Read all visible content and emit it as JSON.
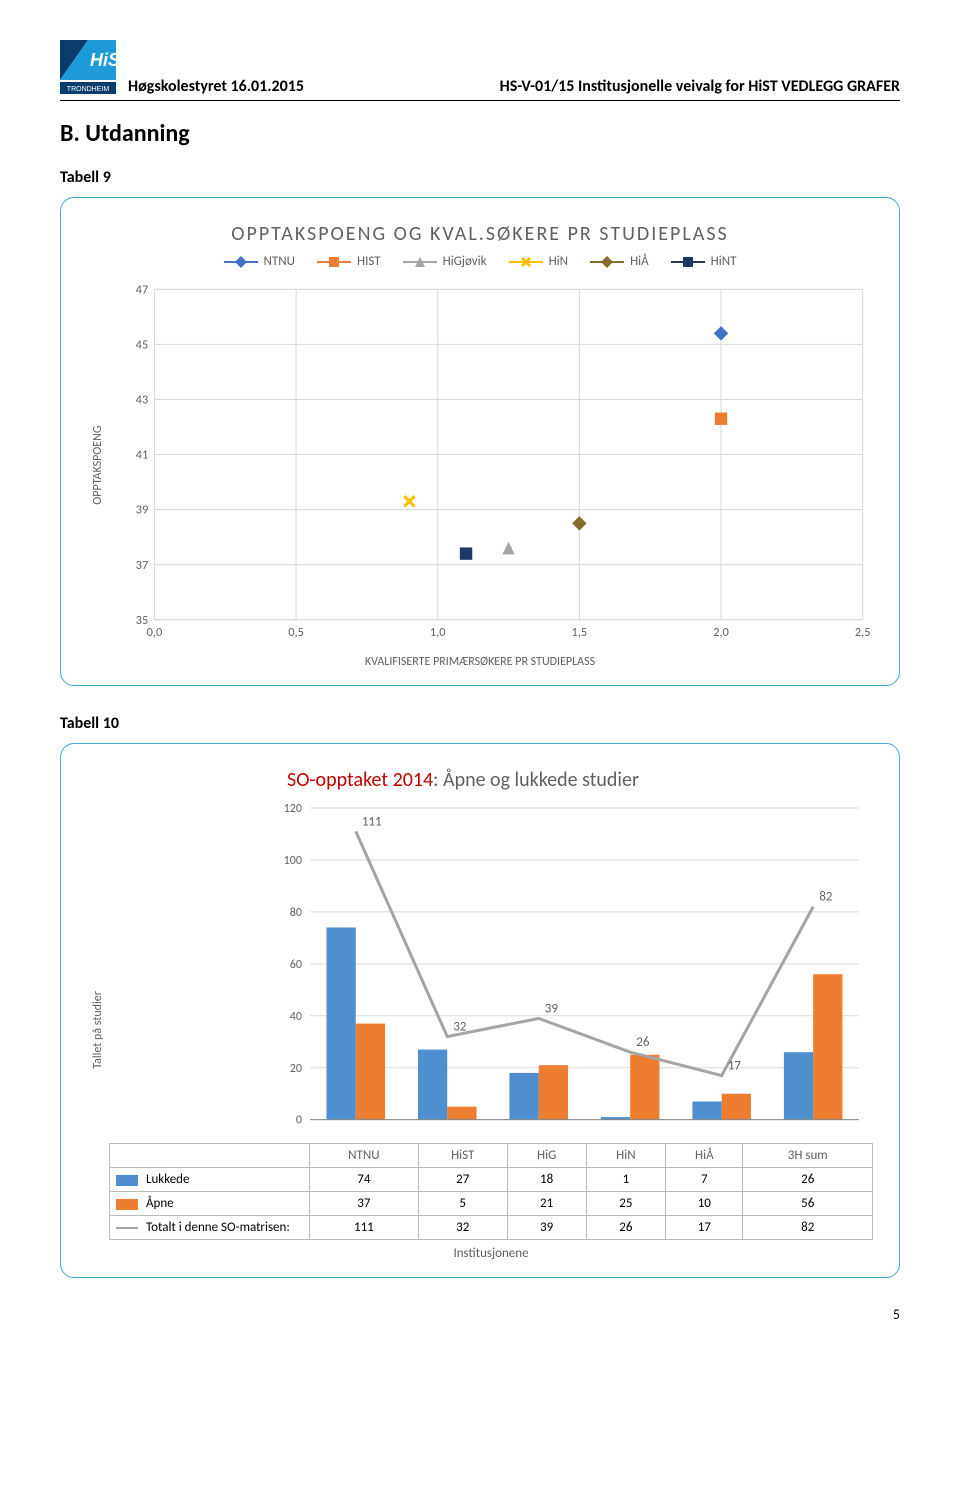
{
  "header": {
    "left": "Høgskolestyret 16.01.2015",
    "right": "HS-V-01/15 Institusjonelle veivalg for HiST VEDLEGG GRAFER"
  },
  "section_title": "B. Utdanning",
  "page_number": "5",
  "logo": {
    "name": "hist-logo",
    "text_top": "HiST",
    "text_bottom": "TRONDHEIM",
    "color1": "#0b3c6e",
    "color2": "#1d9bd8"
  },
  "tabell9": {
    "caption": "Tabell 9",
    "title": "OPPTAKSPOENG OG KVAL.SØKERE PR STUDIEPLASS",
    "x_label": "KVALIFISERTE PRIMÆRSØKERE PR STUDIEPLASS",
    "y_label": "OPPTAKSPOENG",
    "xlim": [
      0.0,
      2.5
    ],
    "ylim": [
      35,
      47
    ],
    "x_ticks": [
      "0,0",
      "0,5",
      "1,0",
      "1,5",
      "2,0",
      "2,5"
    ],
    "y_ticks": [
      35,
      37,
      39,
      41,
      43,
      45,
      47
    ],
    "grid_color": "#d9d9d9",
    "series": [
      {
        "label": "NTNU",
        "color": "#4472c4",
        "marker": "diamond",
        "x": 2.0,
        "y": 45.4
      },
      {
        "label": "HIST",
        "color": "#ed7d31",
        "marker": "square",
        "x": 2.0,
        "y": 42.3
      },
      {
        "label": "HiGjøvik",
        "color": "#a5a5a5",
        "marker": "triangle",
        "x": 1.25,
        "y": 37.6
      },
      {
        "label": "HiN",
        "color": "#ffc000",
        "marker": "x",
        "x": 0.9,
        "y": 39.3
      },
      {
        "label": "HiÅ",
        "color": "#846f2a",
        "marker": "diamond",
        "x": 1.5,
        "y": 38.5
      },
      {
        "label": "HiNT",
        "color": "#203864",
        "marker": "square",
        "x": 1.1,
        "y": 37.4
      }
    ]
  },
  "tabell10": {
    "caption": "Tabell 10",
    "title_prefix": "SO-opptaket 2014",
    "title_rest": ": Åpne og lukkede studier",
    "y_label": "Tallet på studier",
    "x_label": "Institusjonene",
    "x_categories": [
      "NTNU",
      "HiST",
      "HiG",
      "HiN",
      "HiÅ",
      "3H sum"
    ],
    "ylim": [
      0,
      120
    ],
    "y_ticks": [
      0,
      20,
      40,
      60,
      80,
      100,
      120
    ],
    "grid_color": "#d9d9d9",
    "bar_width": 0.32,
    "colors": {
      "lukkede": "#4f8fcf",
      "apne": "#ed7d31",
      "totalt": "#a5a5a5"
    },
    "rows": [
      {
        "label": "Lukkede",
        "values": [
          74,
          27,
          18,
          1,
          7,
          26
        ]
      },
      {
        "label": "Åpne",
        "values": [
          37,
          5,
          21,
          25,
          10,
          56
        ]
      },
      {
        "label": "Totalt i denne SO-matrisen:",
        "values": [
          111,
          32,
          39,
          26,
          17,
          82
        ]
      }
    ]
  }
}
